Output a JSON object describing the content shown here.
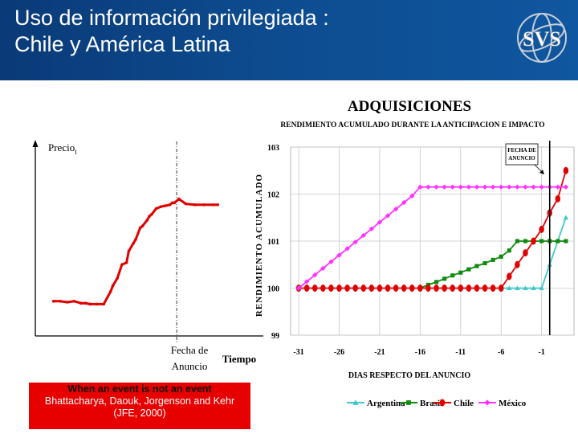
{
  "slide": {
    "title_line1": "Uso de información privilegiada :",
    "title_line2": "Chile y América Latina",
    "logo_text": "SVS"
  },
  "note": {
    "heading": "When an event is not an event",
    "citation_line1": "Bhattacharya, Daouk, Jorgenson and Kehr",
    "citation_line2": "(JFE, 2000)"
  },
  "colors": {
    "header_bg": "#0d4b8e",
    "argentina": "#3fc9c9",
    "brasil": "#108a10",
    "chile": "#e00000",
    "mexico": "#ff33ff",
    "note_bg": "#e60000"
  },
  "chart_data": [
    {
      "type": "line",
      "title": "",
      "ylabel_text": "Precio",
      "ylabel_subscript": "t",
      "xlabel": "Tiempo",
      "event_label_line1": "Fecha de",
      "event_label_line2": "Anuncio",
      "event_x": 0.62,
      "xlim": [
        0,
        1
      ],
      "ylim": [
        0,
        1
      ],
      "series": [
        {
          "name": "Precio",
          "x": [
            0.08,
            0.11,
            0.14,
            0.17,
            0.2,
            0.22,
            0.24,
            0.27,
            0.3,
            0.33,
            0.34,
            0.36,
            0.38,
            0.4,
            0.41,
            0.43,
            0.44,
            0.46,
            0.47,
            0.49,
            0.5,
            0.51,
            0.53,
            0.55,
            0.57,
            0.59,
            0.6,
            0.61,
            0.63,
            0.66,
            0.7,
            0.74,
            0.78,
            0.8
          ],
          "y": [
            0.18,
            0.18,
            0.175,
            0.18,
            0.17,
            0.17,
            0.165,
            0.165,
            0.165,
            0.23,
            0.26,
            0.3,
            0.37,
            0.38,
            0.44,
            0.48,
            0.5,
            0.56,
            0.57,
            0.6,
            0.62,
            0.63,
            0.66,
            0.67,
            0.675,
            0.68,
            0.69,
            0.69,
            0.71,
            0.685,
            0.68,
            0.68,
            0.68,
            0.68
          ]
        }
      ]
    },
    {
      "type": "line",
      "title": "ADQUISICIONES",
      "subtitle": "RENDIMIENTO ACUMULADO DURANTE LA ANTICIPACION E IMPACTO",
      "ylabel": "RENDIMIENTO ACUMULADO",
      "xlabel": "DIAS RESPECTO DEL ANUNCIO",
      "annotation_line1": "FECHA DE",
      "annotation_line2": "ANUNCIO",
      "event_x": 0,
      "xlim": [
        -32,
        3
      ],
      "ylim": [
        99,
        103
      ],
      "x_ticks": [
        -31,
        -26,
        -21,
        -16,
        -11,
        -6,
        -1
      ],
      "x_tick_labels": [
        "-31",
        "-26",
        "-21",
        "-16",
        "-11",
        "-6",
        "-1"
      ],
      "y_ticks": [
        99,
        100,
        101,
        102,
        103
      ],
      "y_tick_labels": [
        "99",
        "100",
        "101",
        "102",
        "103"
      ],
      "legend": [
        "Argentina",
        "Brasil",
        "Chile",
        "México"
      ],
      "legend_position": "bottom",
      "series": [
        {
          "name": "Argentina",
          "x": [
            -6,
            -5,
            -4,
            -3,
            -2,
            -1,
            0,
            1,
            2
          ],
          "y": [
            100,
            100,
            100,
            100,
            100,
            100,
            100.5,
            101,
            101.5
          ]
        },
        {
          "name": "Brasil",
          "x": [
            -16,
            -15,
            -14,
            -13,
            -12,
            -11,
            -10,
            -9,
            -8,
            -7,
            -6,
            -5,
            -4,
            -3,
            -2,
            -1,
            0,
            1,
            2
          ],
          "y": [
            100,
            100.07,
            100.13,
            100.2,
            100.27,
            100.33,
            100.4,
            100.47,
            100.53,
            100.6,
            100.67,
            100.8,
            101,
            101,
            101,
            101,
            101,
            101,
            101
          ]
        },
        {
          "name": "Chile",
          "x": [
            -31,
            -30,
            -29,
            -28,
            -27,
            -26,
            -25,
            -24,
            -23,
            -22,
            -21,
            -20,
            -19,
            -18,
            -17,
            -16,
            -15,
            -14,
            -13,
            -12,
            -11,
            -10,
            -9,
            -8,
            -7,
            -6,
            -5,
            -4,
            -3,
            -2,
            -1,
            0,
            1,
            2
          ],
          "y": [
            100,
            100,
            100,
            100,
            100,
            100,
            100,
            100,
            100,
            100,
            100,
            100,
            100,
            100,
            100,
            100,
            100,
            100,
            100,
            100,
            100,
            100,
            100,
            100,
            100,
            100,
            100.25,
            100.5,
            100.75,
            101,
            101.25,
            101.6,
            101.9,
            102.5
          ]
        },
        {
          "name": "México",
          "x": [
            -31,
            -30,
            -29,
            -28,
            -27,
            -26,
            -25,
            -24,
            -23,
            -22,
            -21,
            -20,
            -19,
            -18,
            -17,
            -16,
            -15,
            -14,
            -13,
            -12,
            -11,
            -10,
            -9,
            -8,
            -7,
            -6,
            -5,
            -4,
            -3,
            -2,
            -1,
            0,
            1,
            2
          ],
          "y": [
            100,
            100.14,
            100.28,
            100.42,
            100.56,
            100.7,
            100.84,
            100.98,
            101.12,
            101.26,
            101.4,
            101.54,
            101.68,
            101.82,
            101.96,
            102.15,
            102.15,
            102.15,
            102.15,
            102.15,
            102.15,
            102.15,
            102.15,
            102.15,
            102.15,
            102.15,
            102.15,
            102.15,
            102.15,
            102.15,
            102.15,
            102.15,
            102.15,
            102.15
          ]
        }
      ]
    }
  ]
}
